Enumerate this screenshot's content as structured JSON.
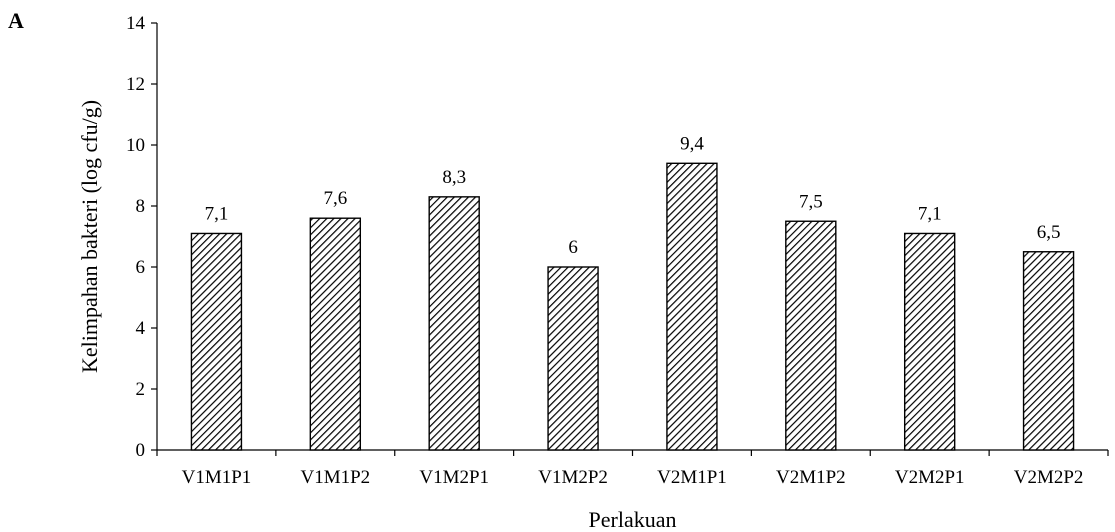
{
  "panel_label": "A",
  "chart_data": {
    "type": "bar",
    "title": "",
    "xlabel": "Perlakuan",
    "ylabel": "Kelimpahan bakteri (log cfu/g)",
    "categories": [
      "V1M1P1",
      "V1M1P2",
      "V1M2P1",
      "V1M2P2",
      "V2M1P1",
      "V2M1P2",
      "V2M2P1",
      "V2M2P2"
    ],
    "values": [
      7.1,
      7.6,
      8.3,
      6,
      9.4,
      7.5,
      7.1,
      6.5
    ],
    "data_labels": [
      "7,1",
      "7,6",
      "8,3",
      "6",
      "9,4",
      "7,5",
      "7,1",
      "6,5"
    ],
    "ylim": [
      0,
      14
    ],
    "yticks": [
      0,
      2,
      4,
      6,
      8,
      10,
      12,
      14
    ],
    "bar_pattern": "diagonal-hatch",
    "bar_color": "#000000",
    "grid": false,
    "legend": "none"
  }
}
